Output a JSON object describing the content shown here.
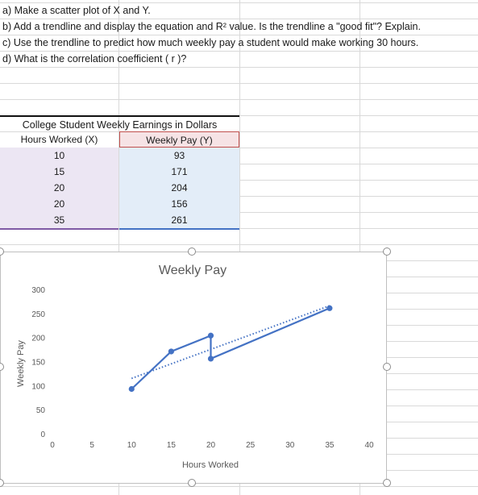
{
  "questions": [
    "a) Make a scatter plot of X and Y.",
    "b) Add a trendline and display the equation and R² value. Is the trendline a \"good fit\"? Explain.",
    "c) Use the trendline to predict how much weekly pay a student would make working 30 hours.",
    "d) What is the correlation coefficient ( r )?"
  ],
  "table": {
    "title": "College Student Weekly Earnings in Dollars",
    "headers": [
      "Hours Worked (X)",
      "Weekly Pay (Y)"
    ],
    "rows": [
      [
        "10",
        "93"
      ],
      [
        "15",
        "171"
      ],
      [
        "20",
        "204"
      ],
      [
        "20",
        "156"
      ],
      [
        "35",
        "261"
      ]
    ]
  },
  "colors": {
    "series": "#4472c4",
    "grid_line": "#d9d9d9",
    "header_x": "#7f5aa5",
    "header_y": "#c0504d"
  },
  "chart_data": {
    "type": "scatter",
    "title": "Weekly Pay",
    "xlabel": "Hours Worked",
    "ylabel": "Weekly Pay",
    "xlim": [
      0,
      40
    ],
    "ylim": [
      0,
      300
    ],
    "x_ticks": [
      "0",
      "5",
      "10",
      "15",
      "20",
      "25",
      "30",
      "35",
      "40"
    ],
    "y_ticks": [
      "0",
      "50",
      "100",
      "150",
      "200",
      "250",
      "300"
    ],
    "series": [
      {
        "x": [
          10,
          15,
          20,
          20,
          35
        ],
        "y": [
          93,
          171,
          204,
          156,
          261
        ],
        "connected": true
      }
    ],
    "trendline": {
      "type": "linear",
      "style": "dotted",
      "x": [
        10,
        35
      ],
      "y": [
        115,
        266
      ]
    },
    "grid": false,
    "legend": "none"
  }
}
